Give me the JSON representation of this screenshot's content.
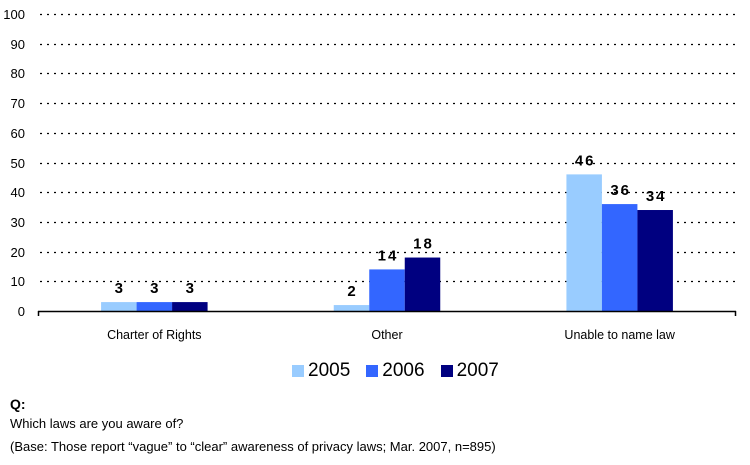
{
  "chart_data": {
    "type": "bar",
    "title": "",
    "xlabel": "",
    "ylabel": "",
    "ylim": [
      0,
      100
    ],
    "yticks": [
      0,
      10,
      20,
      30,
      40,
      50,
      60,
      70,
      80,
      90,
      100
    ],
    "grid": true,
    "categories": [
      "Charter of Rights",
      "Other",
      "Unable to name law"
    ],
    "series": [
      {
        "name": "2005",
        "color": "#99CCFF",
        "values": [
          3,
          2,
          46
        ]
      },
      {
        "name": "2006",
        "color": "#3366FF",
        "values": [
          3,
          14,
          36
        ]
      },
      {
        "name": "2007",
        "color": "#000080",
        "values": [
          3,
          18,
          34
        ]
      }
    ],
    "legend_position": "bottom-center"
  },
  "notes": {
    "q_label": "Q:",
    "question": "Which laws are you aware of?",
    "base": "(Base: Those report “vague” to “clear” awareness of privacy laws; Mar. 2007, n=895)"
  }
}
